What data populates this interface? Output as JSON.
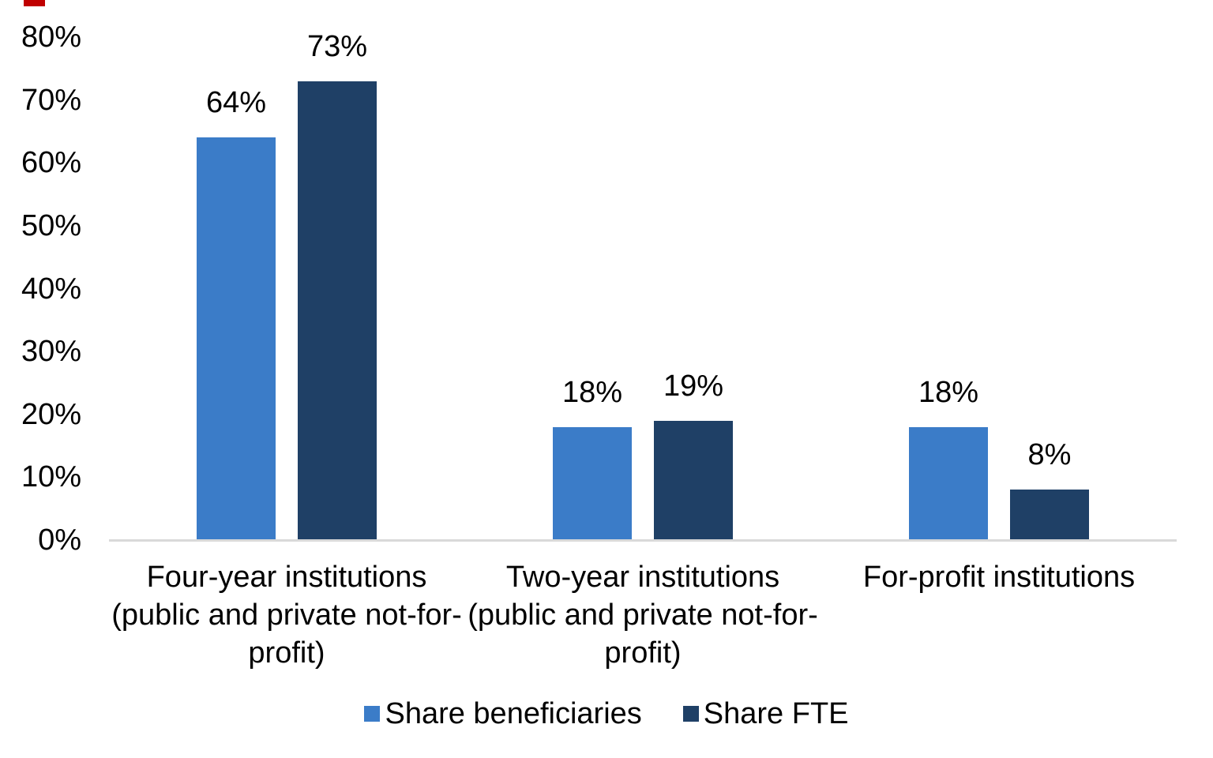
{
  "chart_data": {
    "type": "bar",
    "title": "",
    "categories": [
      "Four-year institutions (public and private not-for-profit)",
      "Two-year institutions (public and private not-for-profit)",
      "For-profit institutions"
    ],
    "category_lines": [
      [
        "Four-year institutions",
        "(public and private not-for-",
        "profit)"
      ],
      [
        "Two-year institutions",
        "(public and private not-for-",
        "profit)"
      ],
      [
        "For-profit institutions"
      ]
    ],
    "series": [
      {
        "name": "Share beneficiaries",
        "color": "#3B7CC8",
        "values": [
          64,
          18,
          18
        ],
        "data_labels": [
          "64%",
          "18%",
          "18%"
        ]
      },
      {
        "name": "Share FTE",
        "color": "#1F4066",
        "values": [
          73,
          19,
          8
        ],
        "data_labels": [
          "73%",
          "19%",
          "8%"
        ]
      }
    ],
    "y_axis": {
      "min": 0,
      "max": 80,
      "ticks": [
        0,
        10,
        20,
        30,
        40,
        50,
        60,
        70,
        80
      ],
      "tick_labels": [
        "0%",
        "10%",
        "20%",
        "30%",
        "40%",
        "50%",
        "60%",
        "70%",
        "80%"
      ]
    },
    "x_axis": {
      "line_color": "#D9D9D9"
    },
    "legend": {
      "position": "bottom",
      "entries": [
        "Share beneficiaries",
        "Share FTE"
      ]
    },
    "grid": false,
    "colors": {
      "text": "#000000",
      "background": "#FFFFFF",
      "red_mark": "#C00000"
    }
  }
}
